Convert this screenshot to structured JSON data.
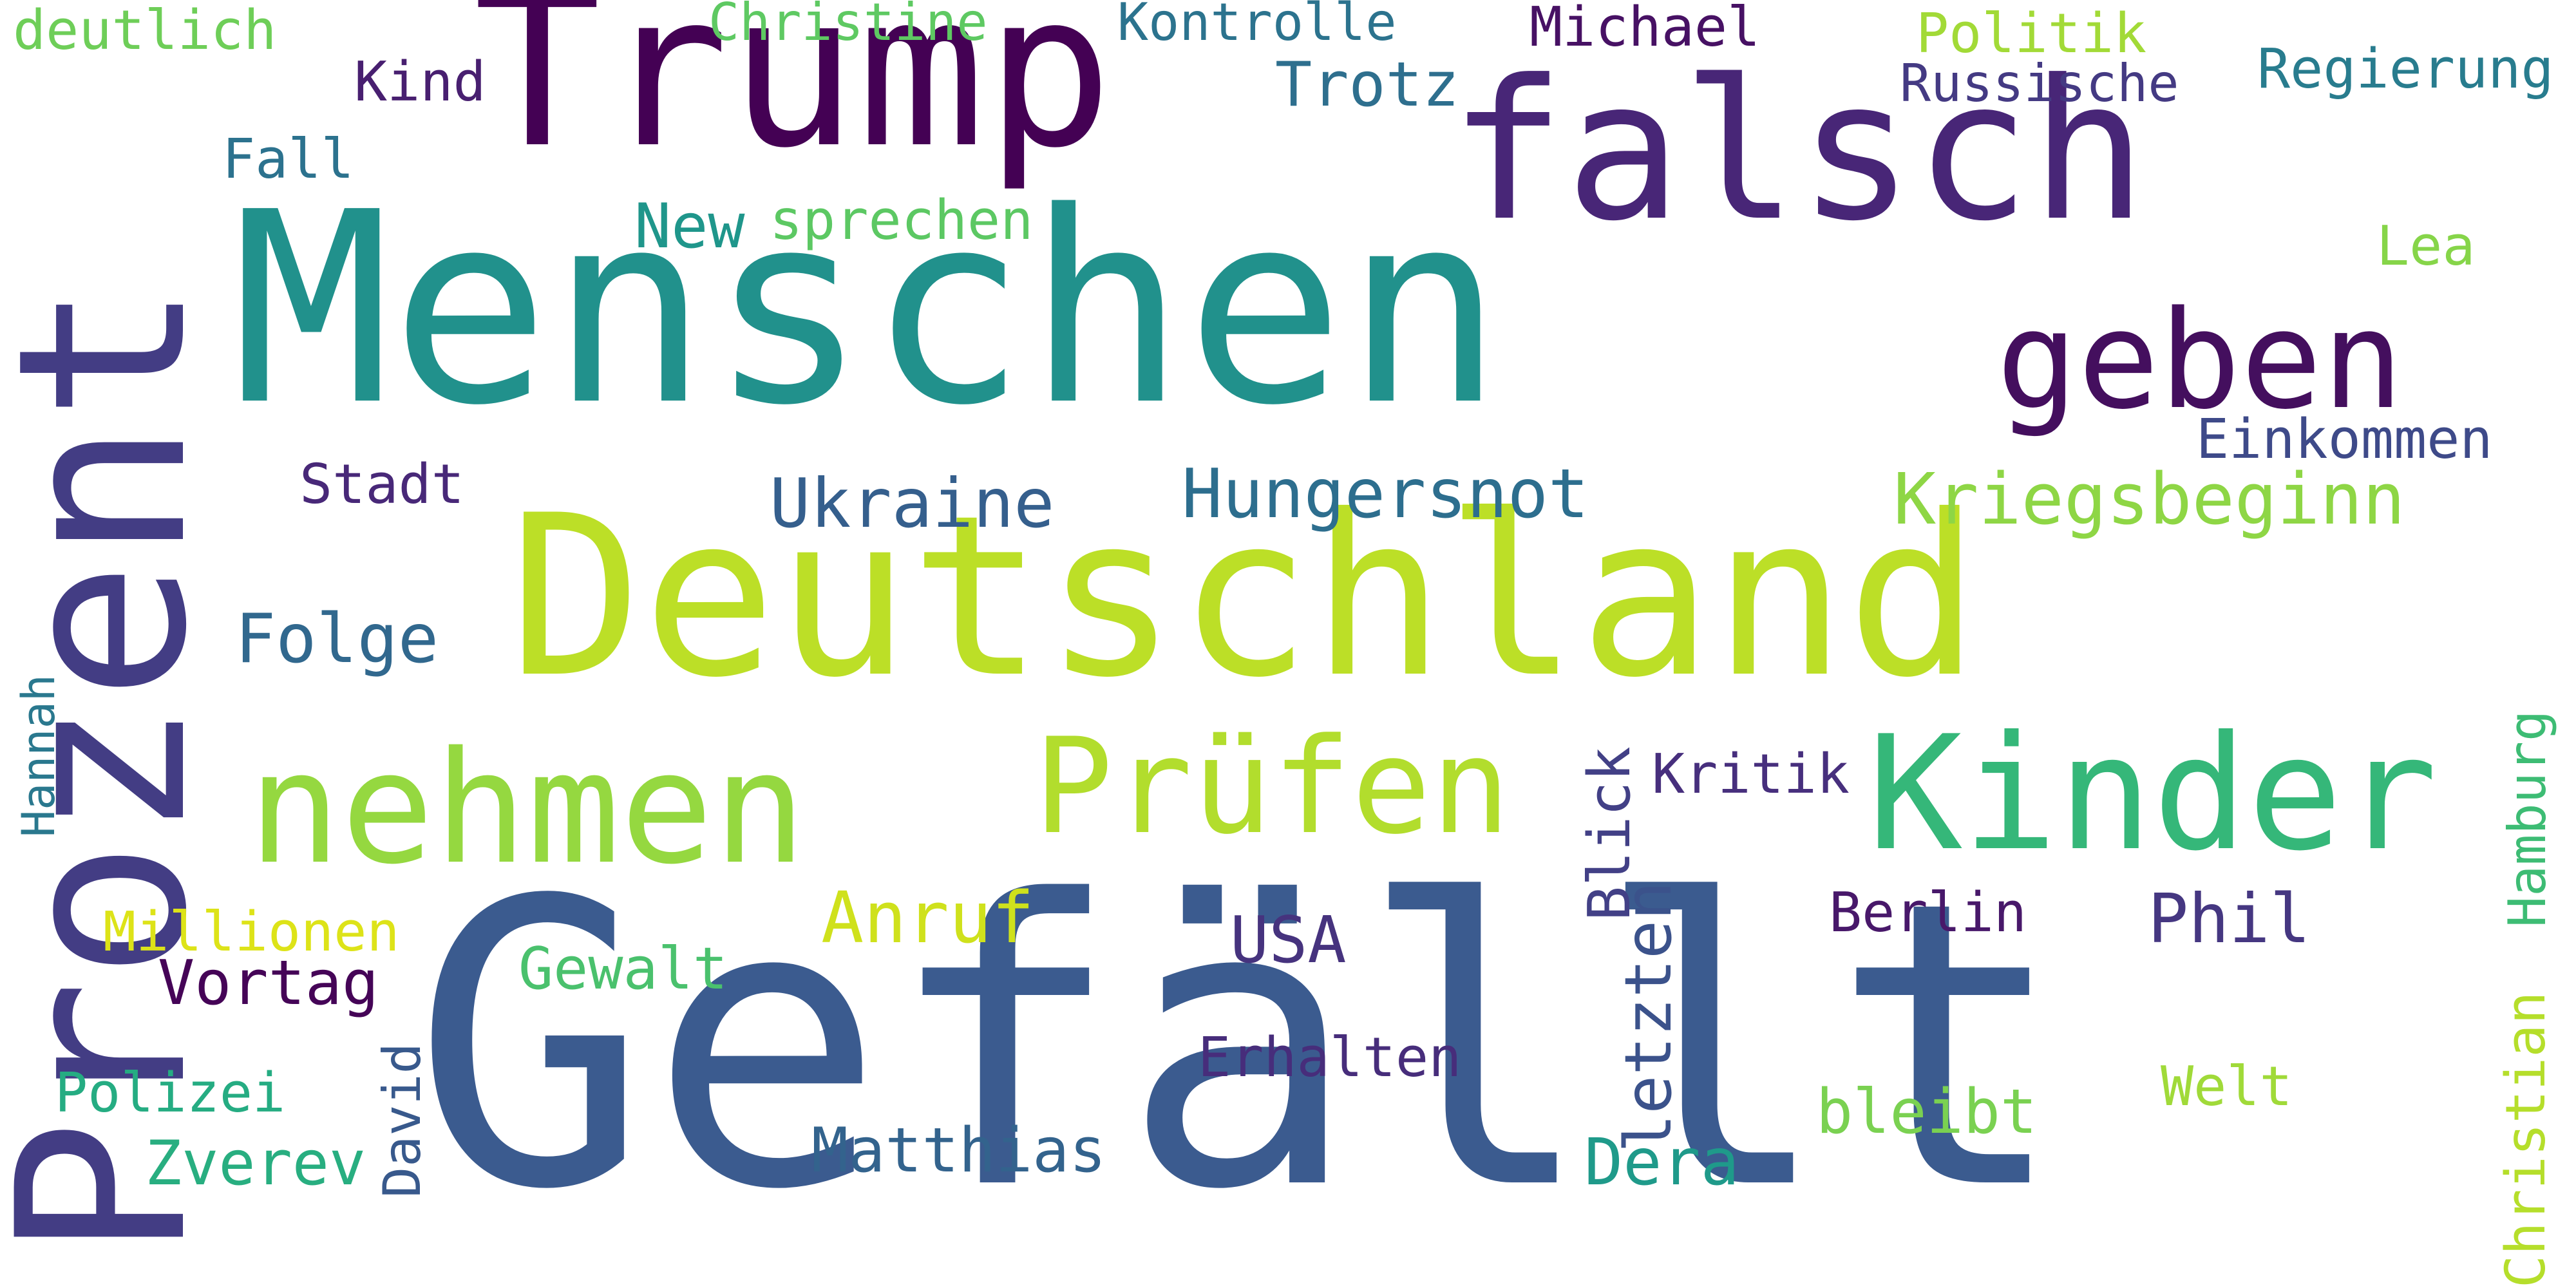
{
  "words": [
    {
      "text": "Gefällt",
      "color": "#3b5b8f"
    },
    {
      "text": "Deutschland",
      "color": "#bcdf27"
    },
    {
      "text": "Menschen",
      "color": "#21918c"
    },
    {
      "text": "Prozent",
      "color": "#433d84"
    },
    {
      "text": "Trump",
      "color": "#440154"
    },
    {
      "text": "falsch",
      "color": "#482677"
    },
    {
      "text": "nehmen",
      "color": "#95d840"
    },
    {
      "text": "Prüfen",
      "color": "#b2dd2d"
    },
    {
      "text": "Kinder",
      "color": "#35b779"
    },
    {
      "text": "geben",
      "color": "#440f5e"
    },
    {
      "text": "Kriegsbeginn",
      "color": "#8ed645"
    },
    {
      "text": "Hungersnot",
      "color": "#2d6e8e"
    },
    {
      "text": "Ukraine",
      "color": "#355f8d"
    },
    {
      "text": "Folge",
      "color": "#31688e"
    },
    {
      "text": "Einkommen",
      "color": "#3e4a89"
    },
    {
      "text": "Anruf",
      "color": "#cfe11c"
    },
    {
      "text": "USA",
      "color": "#46337e"
    },
    {
      "text": "Phil",
      "color": "#453781"
    },
    {
      "text": "Dera",
      "color": "#1f9a8a"
    },
    {
      "text": "letzten",
      "color": "#3b528b"
    },
    {
      "text": "Blick",
      "color": "#424086"
    },
    {
      "text": "Kritik",
      "color": "#472f7d"
    },
    {
      "text": "Berlin",
      "color": "#48186a"
    },
    {
      "text": "Erhalten",
      "color": "#472d7b"
    },
    {
      "text": "bleibt",
      "color": "#7ad151"
    },
    {
      "text": "Welt",
      "color": "#a0da39"
    },
    {
      "text": "Matthias",
      "color": "#33638d"
    },
    {
      "text": "Gewalt",
      "color": "#4ac16d"
    },
    {
      "text": "Millionen",
      "color": "#dde318"
    },
    {
      "text": "Vortag",
      "color": "#450457"
    },
    {
      "text": "Polizei",
      "color": "#25ac82"
    },
    {
      "text": "Zverev",
      "color": "#28ae80"
    },
    {
      "text": "David",
      "color": "#38598c"
    },
    {
      "text": "Hannah",
      "color": "#2a788e"
    },
    {
      "text": "Hamburg",
      "color": "#3dbc74"
    },
    {
      "text": "Christian",
      "color": "#b5de2b"
    },
    {
      "text": "Stadt",
      "color": "#482878"
    },
    {
      "text": "New",
      "color": "#1f968b"
    },
    {
      "text": "sprechen",
      "color": "#5cc863"
    },
    {
      "text": "Fall",
      "color": "#2c728e"
    },
    {
      "text": "Kind",
      "color": "#481f70"
    },
    {
      "text": "Trotz",
      "color": "#2e6f8e"
    },
    {
      "text": "Kontrolle",
      "color": "#2c738e"
    },
    {
      "text": "Christine",
      "color": "#5ec962"
    },
    {
      "text": "deutlich",
      "color": "#6ece58"
    },
    {
      "text": "Michael",
      "color": "#471164"
    },
    {
      "text": "Politik",
      "color": "#a2da37"
    },
    {
      "text": "Russische",
      "color": "#443a83"
    },
    {
      "text": "Regierung",
      "color": "#287c8e"
    },
    {
      "text": "Lea",
      "color": "#86d549"
    }
  ]
}
